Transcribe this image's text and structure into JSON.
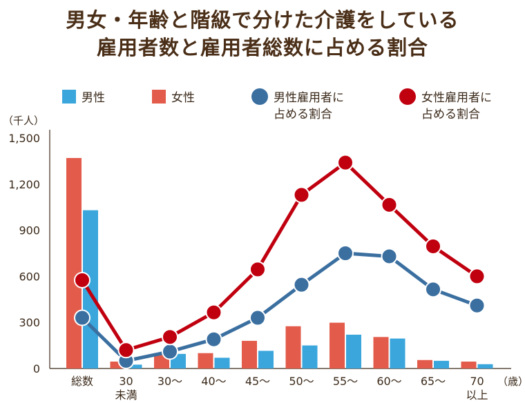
{
  "chart_data": {
    "type": "bar",
    "title_line1": "男女・年齢と階級で分けた介護をしている",
    "title_line2": "雇用者数と雇用者総数に占める割合",
    "y_unit_label": "（千人）",
    "x_unit_label": "（歳）",
    "ylim": [
      0,
      1500
    ],
    "yticks": [
      0,
      300,
      600,
      900,
      "1,200",
      "1,500"
    ],
    "categories": [
      [
        "総数"
      ],
      [
        "30",
        "未満"
      ],
      [
        "30～"
      ],
      [
        "40～"
      ],
      [
        "45～"
      ],
      [
        "50～"
      ],
      [
        "55～"
      ],
      [
        "60～"
      ],
      [
        "65～"
      ],
      [
        "70",
        "以上"
      ]
    ],
    "bar_series": [
      {
        "name": "男性",
        "color": "#3aa6dc",
        "values": [
          1030,
          25,
          95,
          70,
          115,
          150,
          220,
          195,
          50,
          28
        ]
      },
      {
        "name": "女性",
        "color": "#e35b4a",
        "values": [
          1370,
          45,
          100,
          100,
          180,
          275,
          298,
          205,
          55,
          45
        ]
      }
    ],
    "line_series": [
      {
        "name": [
          "男性雇用者に",
          "占める割合"
        ],
        "color": "#3a6fa0",
        "values": [
          330,
          50,
          110,
          190,
          330,
          545,
          750,
          730,
          515,
          410
        ]
      },
      {
        "name": [
          "女性雇用者に",
          "占める割合"
        ],
        "color": "#c0000f",
        "values": [
          575,
          120,
          205,
          365,
          645,
          1130,
          1340,
          1065,
          795,
          600
        ]
      }
    ],
    "grid": false,
    "legend_position": "top"
  }
}
